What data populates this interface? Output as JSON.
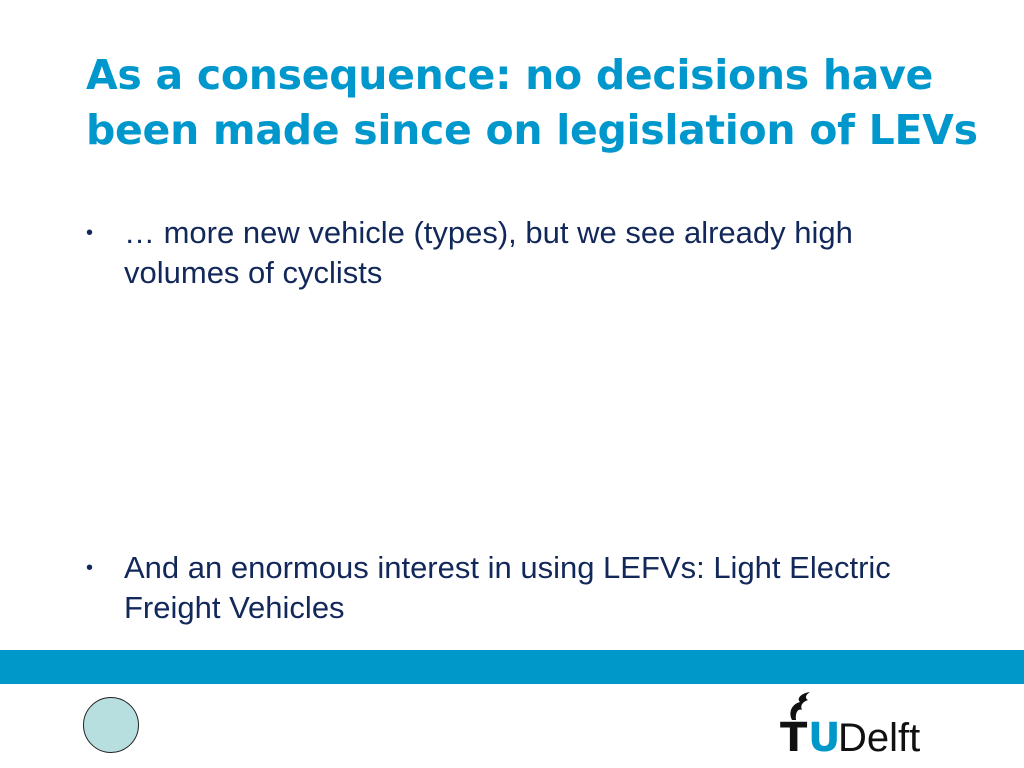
{
  "slide": {
    "title": "As a consequence: no decisions have been made since on legislation of LEVs",
    "bullets": [
      {
        "marker": "•",
        "text": "… more new vehicle (types), but we see already high volumes of cyclists"
      },
      {
        "marker": "•",
        "text": "And an enormous interest in using LEFVs: Light Electric Freight Vehicles"
      }
    ]
  },
  "footer": {
    "band_color": "#0098c8",
    "logo": {
      "t": "T",
      "u": "U",
      "delft": "Delft"
    }
  }
}
